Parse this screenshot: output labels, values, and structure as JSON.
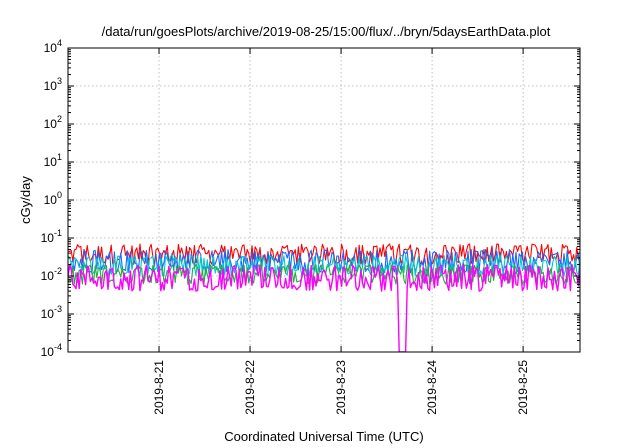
{
  "chart_data": {
    "type": "line",
    "title": "/data/run/goesPlots/archive/2019-08-25/15:00/flux/../bryn/5daysEarthData.plot",
    "xlabel": "Coordinated Universal Time (UTC)",
    "ylabel": "cGy/day",
    "yscale": "log",
    "ylim": [
      0.0001,
      10000
    ],
    "y_ticks": [
      {
        "base": "10",
        "exp": "-4",
        "value": 0.0001
      },
      {
        "base": "10",
        "exp": "-3",
        "value": 0.001
      },
      {
        "base": "10",
        "exp": "-2",
        "value": 0.01
      },
      {
        "base": "10",
        "exp": "-1",
        "value": 0.1
      },
      {
        "base": "10",
        "exp": "0",
        "value": 1
      },
      {
        "base": "10",
        "exp": "1",
        "value": 10
      },
      {
        "base": "10",
        "exp": "2",
        "value": 100
      },
      {
        "base": "10",
        "exp": "3",
        "value": 1000
      },
      {
        "base": "10",
        "exp": "4",
        "value": 10000
      }
    ],
    "xlim": [
      "2019-08-20 00:00",
      "2019-08-25 15:00"
    ],
    "x_ticks": [
      "2019-8-21",
      "2019-8-22",
      "2019-8-23",
      "2019-8-24",
      "2019-8-25"
    ],
    "grid": true,
    "legend": "none",
    "series": [
      {
        "color": "#ff0000",
        "typical_min": 0.02,
        "typical_max": 0.07
      },
      {
        "color": "#1e66ff",
        "typical_min": 0.012,
        "typical_max": 0.05
      },
      {
        "color": "#00c8c8",
        "typical_min": 0.01,
        "typical_max": 0.035
      },
      {
        "color": "#1fae3a",
        "typical_min": 0.006,
        "typical_max": 0.02
      },
      {
        "color": "#ff00ff",
        "typical_min": 0.004,
        "typical_max": 0.02,
        "dip": {
          "at": "2019-08-23 16:00",
          "value": 0.0001
        }
      }
    ]
  }
}
